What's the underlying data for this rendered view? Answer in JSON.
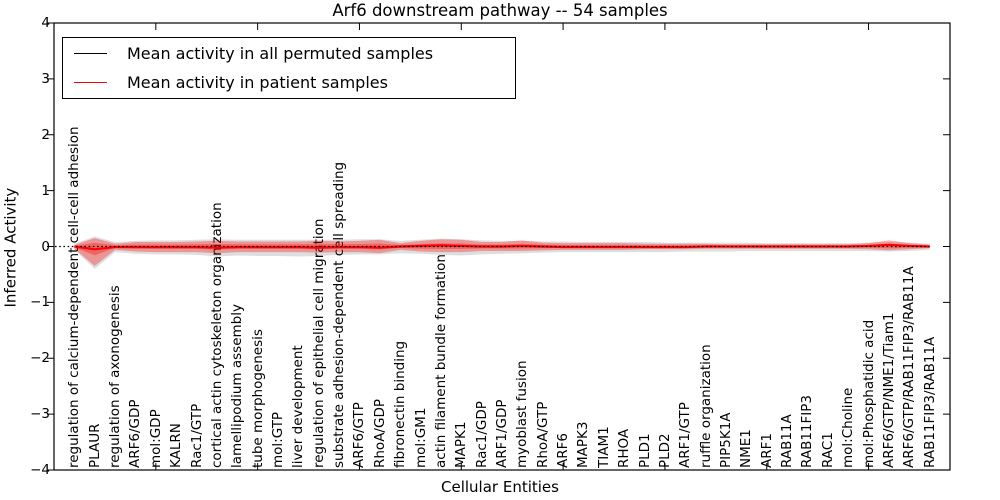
{
  "title": "Arf6 downstream pathway -- 54 samples",
  "legend": {
    "items": [
      {
        "label": "Mean activity in all permuted samples",
        "color": "#000000"
      },
      {
        "label": "Mean activity in patient samples",
        "color": "#ff0000"
      }
    ]
  },
  "axes": {
    "y_tick_values": [
      4,
      3,
      2,
      1,
      0,
      -1,
      -2,
      -3,
      -4
    ],
    "y_tick_labels": [
      "4",
      "3",
      "2",
      "1",
      "0",
      "−1",
      "−2",
      "−3",
      "−4"
    ],
    "x_major_tick_units": [
      0,
      5,
      10,
      15,
      20,
      25,
      30,
      35,
      40
    ]
  },
  "chart_data": {
    "type": "area",
    "title": "Arf6 downstream pathway -- 54 samples",
    "xlabel": "Cellular Entities",
    "ylabel": "Inferred Activity",
    "ylim": [
      -4,
      4
    ],
    "xlim_units": [
      0,
      44
    ],
    "grid": false,
    "legend_position": "upper left",
    "categories": [
      "regulation of calcium-dependent cell-cell adhesion",
      "PLAUR",
      "regulation of axonogenesis",
      "ARF6/GDP",
      "mol:GDP",
      "KALRN",
      "Rac1/GTP",
      "cortical actin cytoskeleton organization",
      "lamellipodium assembly",
      "tube morphogenesis",
      "mol:GTP",
      "liver development",
      "regulation of epithelial cell migration",
      "substrate adhesion-dependent cell spreading",
      "ARF6/GTP",
      "RhoA/GDP",
      "fibronectin binding",
      "mol:GM1",
      "actin filament bundle formation",
      "MAPK1",
      "Rac1/GDP",
      "ARF1/GDP",
      "myoblast fusion",
      "RhoA/GTP",
      "ARF6",
      "MAPK3",
      "TIAM1",
      "RHOA",
      "PLD1",
      "PLD2",
      "ARF1/GTP",
      "ruffle organization",
      "PIP5K1A",
      "NME1",
      "ARF1",
      "RAB11A",
      "RAB11FIP3",
      "RAC1",
      "mol:Choline",
      "mol:Phosphatidic acid",
      "ARF6/GTP/NME1/Tiam1",
      "ARF6/GTP/RAB11FIP3/RAB11A",
      "RAB11FIP3/RAB11A"
    ],
    "series": [
      {
        "name": "Mean activity in all permuted samples",
        "role": "permuted_mean",
        "type": "line",
        "style": "dotted",
        "color": "#000000",
        "values": [
          0,
          0,
          0,
          0,
          0,
          0,
          0,
          0,
          0,
          0,
          0,
          0,
          0,
          0,
          0,
          0,
          0,
          0,
          0,
          0,
          0,
          0,
          0,
          0,
          0,
          0,
          0,
          0,
          0,
          0,
          0,
          0,
          0,
          0,
          0,
          0,
          0,
          0,
          0,
          0,
          0,
          0,
          0
        ]
      },
      {
        "name": "Mean activity in patient samples",
        "role": "patient_mean",
        "type": "line",
        "style": "solid",
        "color": "#ff0000",
        "values": [
          0,
          -0.05,
          -0.01,
          -0.01,
          -0.01,
          -0.01,
          -0.01,
          -0.02,
          -0.01,
          -0.01,
          -0.01,
          -0.01,
          -0.02,
          -0.01,
          -0.01,
          -0.02,
          0,
          0.01,
          0.02,
          0.01,
          0,
          0,
          0.01,
          0,
          -0.01,
          -0.01,
          -0.01,
          -0.01,
          -0.01,
          -0.01,
          -0.01,
          0,
          0,
          0,
          0,
          0,
          0,
          0,
          0,
          0.01,
          0.03,
          0.01,
          0
        ]
      },
      {
        "name": "Permuted samples activity range",
        "role": "permuted_band",
        "type": "band",
        "color": "#000000",
        "opacity": 0.13,
        "upper": [
          0.05,
          0.18,
          0.08,
          0.1,
          0.11,
          0.11,
          0.12,
          0.13,
          0.12,
          0.12,
          0.12,
          0.12,
          0.12,
          0.12,
          0.13,
          0.13,
          0.1,
          0.12,
          0.14,
          0.13,
          0.11,
          0.1,
          0.1,
          0.09,
          0.09,
          0.08,
          0.08,
          0.08,
          0.08,
          0.07,
          0.07,
          0.07,
          0.07,
          0.07,
          0.06,
          0.06,
          0.06,
          0.06,
          0.06,
          0.07,
          0.08,
          0.07,
          0.05
        ],
        "lower": [
          -0.06,
          -0.4,
          -0.1,
          -0.13,
          -0.14,
          -0.14,
          -0.15,
          -0.18,
          -0.16,
          -0.17,
          -0.17,
          -0.18,
          -0.17,
          -0.15,
          -0.14,
          -0.14,
          -0.12,
          -0.13,
          -0.15,
          -0.16,
          -0.14,
          -0.13,
          -0.12,
          -0.11,
          -0.1,
          -0.1,
          -0.1,
          -0.1,
          -0.1,
          -0.1,
          -0.09,
          -0.09,
          -0.09,
          -0.08,
          -0.08,
          -0.08,
          -0.08,
          -0.08,
          -0.08,
          -0.08,
          -0.09,
          -0.08,
          -0.06
        ]
      },
      {
        "name": "Patient samples activity range",
        "role": "patient_band",
        "type": "band",
        "color": "#ff0000",
        "opacity": 0.32,
        "core_scale": 0.45,
        "upper": [
          0.03,
          0.15,
          0.05,
          0.08,
          0.08,
          0.08,
          0.09,
          0.1,
          0.09,
          0.09,
          0.09,
          0.09,
          0.1,
          0.09,
          0.1,
          0.12,
          0.06,
          0.1,
          0.13,
          0.12,
          0.08,
          0.08,
          0.11,
          0.07,
          0.06,
          0.06,
          0.06,
          0.06,
          0.05,
          0.05,
          0.05,
          0.05,
          0.04,
          0.04,
          0.04,
          0.04,
          0.04,
          0.04,
          0.04,
          0.06,
          0.11,
          0.06,
          0.03
        ],
        "lower": [
          -0.04,
          -0.35,
          -0.06,
          -0.09,
          -0.1,
          -0.1,
          -0.1,
          -0.12,
          -0.1,
          -0.1,
          -0.1,
          -0.1,
          -0.11,
          -0.1,
          -0.1,
          -0.12,
          -0.06,
          -0.09,
          -0.1,
          -0.1,
          -0.08,
          -0.08,
          -0.08,
          -0.07,
          -0.06,
          -0.06,
          -0.06,
          -0.06,
          -0.05,
          -0.05,
          -0.05,
          -0.04,
          -0.04,
          -0.04,
          -0.04,
          -0.04,
          -0.04,
          -0.04,
          -0.04,
          -0.05,
          -0.07,
          -0.05,
          -0.03
        ]
      }
    ]
  }
}
